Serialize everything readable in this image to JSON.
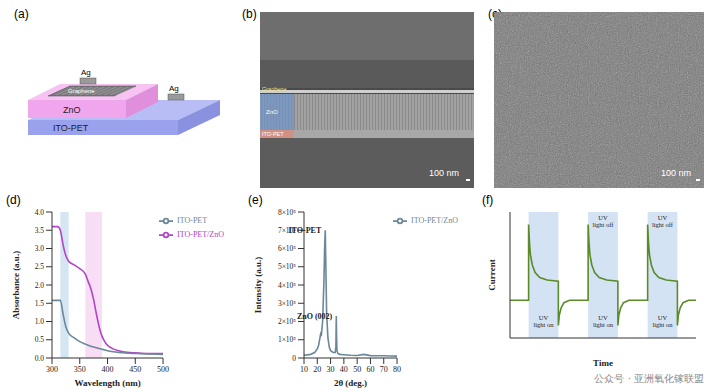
{
  "figure": {
    "a": {
      "label": "(a)",
      "top_electrode": "Ag",
      "graphene": "Graphene",
      "zno": "ZnO",
      "bottom_electrode": "Ag",
      "substrate": "ITO-PET"
    },
    "b": {
      "label": "(b)",
      "layers": [
        "Graphene",
        "ZnO",
        "ITO-PET"
      ],
      "scale_bar": "100 nm"
    },
    "c": {
      "label": "(c)",
      "scale_bar": "100 nm"
    },
    "watermark": "公众号 · 亚洲氧化镓联盟"
  },
  "chart_data": [
    {
      "type": "line",
      "title": "(d)",
      "x_label": "Wavelength (nm)",
      "y_label": "Absorbance (a.u.)",
      "x": [
        300,
        310,
        315,
        320,
        325,
        330,
        340,
        350,
        360,
        365,
        370,
        375,
        380,
        385,
        390,
        395,
        400,
        410,
        420,
        440,
        460,
        480,
        500
      ],
      "series": [
        {
          "name": "ITO-PET/ZnO",
          "color": "#b344c8",
          "values": [
            3.6,
            3.6,
            3.5,
            3.1,
            2.8,
            2.65,
            2.55,
            2.45,
            2.3,
            2.1,
            1.9,
            1.6,
            1.2,
            0.85,
            0.6,
            0.45,
            0.35,
            0.25,
            0.2,
            0.15,
            0.13,
            0.12,
            0.12
          ]
        },
        {
          "name": "ITO-PET",
          "color": "#6b8799",
          "values": [
            1.58,
            1.58,
            1.58,
            1.2,
            0.85,
            0.68,
            0.55,
            0.45,
            0.38,
            0.35,
            0.32,
            0.3,
            0.28,
            0.26,
            0.24,
            0.22,
            0.2,
            0.17,
            0.15,
            0.13,
            0.12,
            0.11,
            0.1
          ]
        }
      ],
      "xlim": [
        300,
        500
      ],
      "xticks": [
        300,
        350,
        400,
        450,
        500
      ],
      "ylim": [
        0,
        4
      ],
      "yticks": [
        {
          "value": 0,
          "label": "0.0"
        },
        0.5,
        {
          "value": 1,
          "label": "1.0"
        },
        1.5,
        {
          "value": 2,
          "label": "2.0"
        },
        2.5,
        {
          "value": 3,
          "label": "3.0"
        },
        3.5,
        {
          "value": 4,
          "label": "4.0"
        }
      ],
      "legend": "upper right",
      "highlight_bands": [
        {
          "x": [
            315,
            330
          ],
          "color": "#c9e0f0"
        },
        {
          "x": [
            360,
            390
          ],
          "color": "#f5d6f3"
        }
      ]
    },
    {
      "type": "line",
      "title": "(e)",
      "x_label": "2θ (deg.)",
      "y_label": "Intensity (a.u.)",
      "x": [
        10,
        15,
        18,
        20,
        21,
        22,
        22.5,
        23,
        24,
        25,
        25.5,
        26,
        26.5,
        27,
        28,
        29,
        30,
        32,
        33.5,
        34,
        34.3,
        34.5,
        34.8,
        35.5,
        37,
        40,
        45,
        50,
        55,
        60,
        65,
        70,
        75,
        80
      ],
      "series": [
        {
          "name": "ITO-PET/ZnO",
          "color": "#6b8799",
          "values": [
            15000,
            20000,
            30000,
            50000,
            70000,
            110000,
            130000,
            120000,
            200000,
            420000,
            600000,
            700000,
            480000,
            250000,
            110000,
            60000,
            40000,
            30000,
            30000,
            60000,
            230000,
            120000,
            40000,
            25000,
            20000,
            18000,
            15000,
            14000,
            20000,
            13000,
            12000,
            12000,
            11000,
            10000
          ]
        }
      ],
      "xlim": [
        10,
        80
      ],
      "xticks": [
        10,
        20,
        30,
        40,
        50,
        60,
        70,
        80
      ],
      "ylim": [
        0,
        800000
      ],
      "yticks": [
        0,
        {
          "value": 100000,
          "label": "1×10⁵"
        },
        {
          "value": 200000,
          "label": "2×10⁵"
        },
        {
          "value": 300000,
          "label": "3×10⁵"
        },
        {
          "value": 400000,
          "label": "4×10⁵"
        },
        {
          "value": 500000,
          "label": "5×10⁵"
        },
        {
          "value": 600000,
          "label": "6×10⁵"
        },
        {
          "value": 700000,
          "label": "7×10⁵"
        },
        {
          "value": 800000,
          "label": "8×10⁵"
        }
      ],
      "legend": "upper right",
      "annotations": [
        {
          "text": "ITO-PET",
          "x": 26,
          "y": 700000
        },
        {
          "text": "ZnO (002)",
          "x": 34.3,
          "y": 230000
        }
      ]
    },
    {
      "type": "line",
      "title": "(f)",
      "x_label": "Time",
      "y_label": "Current",
      "tick_labels": false,
      "x": [
        0,
        10,
        10,
        10.5,
        11,
        12,
        13.5,
        16,
        20,
        26,
        26,
        26.5,
        27.5,
        29,
        32,
        42,
        42,
        42.5,
        43,
        44,
        45.5,
        48,
        52,
        58,
        58,
        58.5,
        59.5,
        61,
        64,
        74,
        74,
        74.5,
        75,
        76,
        77.5,
        80,
        84,
        90,
        90,
        90.5,
        91.5,
        93,
        96,
        100
      ],
      "series": [
        {
          "name": "Current",
          "color": "#5a8a2a",
          "values": [
            3,
            3,
            9,
            7.5,
            6.6,
            5.8,
            5.2,
            4.8,
            4.6,
            4.5,
            1,
            1.8,
            2.4,
            2.8,
            3,
            3,
            9,
            7.5,
            6.6,
            5.8,
            5.2,
            4.8,
            4.6,
            4.5,
            1,
            1.8,
            2.4,
            2.8,
            3,
            3,
            9,
            7.5,
            6.6,
            5.8,
            5.2,
            4.8,
            4.6,
            4.5,
            1,
            1.8,
            2.4,
            2.8,
            3,
            3
          ]
        }
      ],
      "xlim": [
        0,
        100
      ],
      "ylim": [
        0,
        10
      ],
      "highlight_bands": [
        {
          "x": [
            10,
            26
          ],
          "color": "#c9dcf0"
        },
        {
          "x": [
            42,
            58
          ],
          "color": "#c9dcf0"
        },
        {
          "x": [
            74,
            90
          ],
          "color": "#c9dcf0"
        }
      ],
      "annotations": [
        {
          "text": "UV light on",
          "x": 18,
          "y": 1.3
        },
        {
          "text": "UV light on",
          "x": 50,
          "y": 1.3
        },
        {
          "text": "UV light on",
          "x": 82,
          "y": 1.3
        },
        {
          "text": "UV light off",
          "x": 50,
          "y": 9.2
        },
        {
          "text": "UV light off",
          "x": 82,
          "y": 9.2
        }
      ]
    }
  ]
}
